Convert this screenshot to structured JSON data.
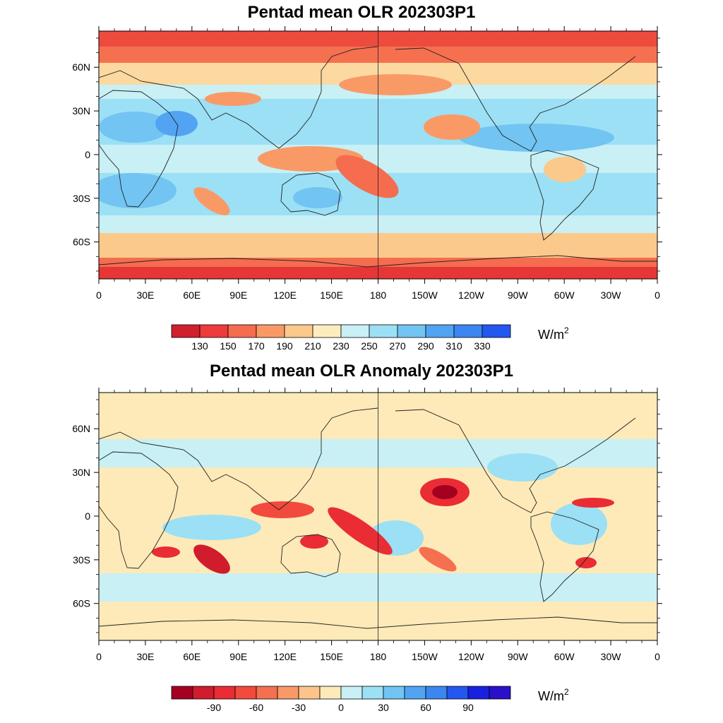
{
  "panels": [
    {
      "title": "Pentad mean OLR 202303P1",
      "x_tick_labels": [
        "0",
        "30E",
        "60E",
        "90E",
        "120E",
        "150E",
        "180",
        "150W",
        "120W",
        "90W",
        "60W",
        "30W",
        "0"
      ],
      "y_tick_labels": [
        "60N",
        "30N",
        "0",
        "30S",
        "60S"
      ],
      "colorbar": {
        "labels": [
          "130",
          "150",
          "170",
          "190",
          "210",
          "230",
          "250",
          "270",
          "290",
          "310",
          "330"
        ],
        "unit_base": "W/m",
        "unit_exp": "2",
        "colors": [
          "#d0202e",
          "#ee3b3b",
          "#f56c4f",
          "#f99a66",
          "#fbc98b",
          "#fcedbf",
          "#c8f0f5",
          "#9ce0f5",
          "#72c4f2",
          "#52a4f2",
          "#3b86f0",
          "#2258f0"
        ]
      }
    },
    {
      "title": "Pentad mean OLR Anomaly 202303P1",
      "x_tick_labels": [
        "0",
        "30E",
        "60E",
        "90E",
        "120E",
        "150E",
        "180",
        "150W",
        "120W",
        "90W",
        "60W",
        "30W",
        "0"
      ],
      "y_tick_labels": [
        "60N",
        "30N",
        "0",
        "30S",
        "60S"
      ],
      "colorbar": {
        "labels": [
          "-90",
          "-60",
          "-30",
          "0",
          "30",
          "60",
          "90"
        ],
        "unit_base": "W/m",
        "unit_exp": "2",
        "colors": [
          "#a40020",
          "#d01c2c",
          "#ea2c34",
          "#f24a3c",
          "#f5704f",
          "#f89a66",
          "#fbc48a",
          "#fdeab8",
          "#c8f0f5",
          "#9be0f5",
          "#72c4f2",
          "#52a4f2",
          "#3b86f0",
          "#2258f0",
          "#1a20e0",
          "#2a10c8"
        ]
      }
    }
  ]
}
